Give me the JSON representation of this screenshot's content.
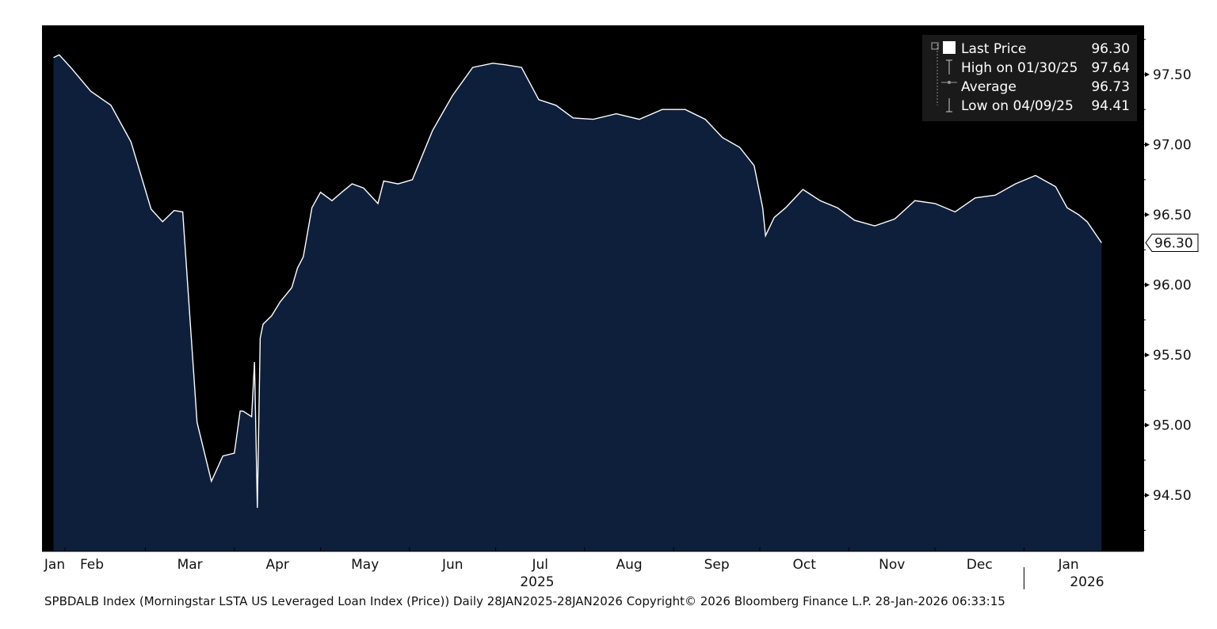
{
  "chart_data": {
    "type": "area",
    "ylim": [
      94.1,
      97.85
    ],
    "y_ticks": [
      "97.50",
      "97.00",
      "96.50",
      "96.00",
      "95.50",
      "95.00",
      "94.50"
    ],
    "x_months": [
      "Jan",
      "Feb",
      "Mar",
      "Apr",
      "May",
      "Jun",
      "Jul",
      "Aug",
      "Sep",
      "Oct",
      "Nov",
      "Dec",
      "Jan"
    ],
    "x_years": [
      "2025",
      "2026"
    ],
    "last_price_label": "96.30",
    "legend": [
      {
        "label": "Last Price",
        "value": "96.30"
      },
      {
        "label": "High on 01/30/25",
        "value": "97.64"
      },
      {
        "label": "Average",
        "value": "96.73"
      },
      {
        "label": "Low on 04/09/25",
        "value": "94.41"
      }
    ],
    "series": [
      {
        "x": [
          "2025-01-28",
          "2025-01-30",
          "2025-02-03",
          "2025-02-10",
          "2025-02-17",
          "2025-02-24",
          "2025-03-03",
          "2025-03-07",
          "2025-03-11",
          "2025-03-14",
          "2025-03-19",
          "2025-03-24",
          "2025-03-28",
          "2025-04-01",
          "2025-04-03",
          "2025-04-04",
          "2025-04-07",
          "2025-04-08",
          "2025-04-09",
          "2025-04-10",
          "2025-04-11",
          "2025-04-14",
          "2025-04-17",
          "2025-04-21",
          "2025-04-23",
          "2025-04-25",
          "2025-04-28",
          "2025-05-01",
          "2025-05-05",
          "2025-05-09",
          "2025-05-12",
          "2025-05-16",
          "2025-05-21",
          "2025-05-23",
          "2025-05-28",
          "2025-06-02",
          "2025-06-09",
          "2025-06-16",
          "2025-06-23",
          "2025-06-30",
          "2025-07-04",
          "2025-07-10",
          "2025-07-16",
          "2025-07-22",
          "2025-07-28",
          "2025-08-04",
          "2025-08-12",
          "2025-08-20",
          "2025-08-28",
          "2025-09-05",
          "2025-09-12",
          "2025-09-18",
          "2025-09-24",
          "2025-09-29",
          "2025-10-02",
          "2025-10-03",
          "2025-10-06",
          "2025-10-10",
          "2025-10-16",
          "2025-10-22",
          "2025-10-28",
          "2025-11-03",
          "2025-11-10",
          "2025-11-17",
          "2025-11-24",
          "2025-12-01",
          "2025-12-08",
          "2025-12-15",
          "2025-12-22",
          "2025-12-29",
          "2026-01-05",
          "2026-01-12",
          "2026-01-16",
          "2026-01-20",
          "2026-01-23",
          "2026-01-28"
        ],
        "y": [
          97.62,
          97.64,
          97.55,
          97.38,
          97.28,
          97.02,
          96.54,
          96.45,
          96.53,
          96.52,
          95.02,
          94.6,
          94.78,
          94.8,
          95.1,
          95.1,
          95.06,
          95.45,
          94.41,
          95.62,
          95.72,
          95.78,
          95.88,
          95.98,
          96.12,
          96.2,
          96.55,
          96.66,
          96.6,
          96.67,
          96.72,
          96.69,
          96.58,
          96.74,
          96.72,
          96.75,
          97.1,
          97.35,
          97.55,
          97.58,
          97.57,
          97.55,
          97.32,
          97.28,
          97.19,
          97.18,
          97.22,
          97.18,
          97.25,
          97.25,
          97.18,
          97.05,
          96.98,
          96.85,
          96.55,
          96.35,
          96.48,
          96.55,
          96.68,
          96.6,
          96.55,
          96.46,
          96.42,
          96.47,
          96.6,
          96.58,
          96.52,
          96.62,
          96.64,
          96.72,
          96.78,
          96.7,
          96.55,
          96.5,
          96.45,
          96.3
        ]
      }
    ]
  },
  "footer": {
    "text": "SPBDALB Index (Morningstar LSTA US Leveraged Loan Index (Price)) Daily 28JAN2025-28JAN2026  Copyright© 2026 Bloomberg Finance L.P.  28-Jan-2026 06:33:15"
  }
}
